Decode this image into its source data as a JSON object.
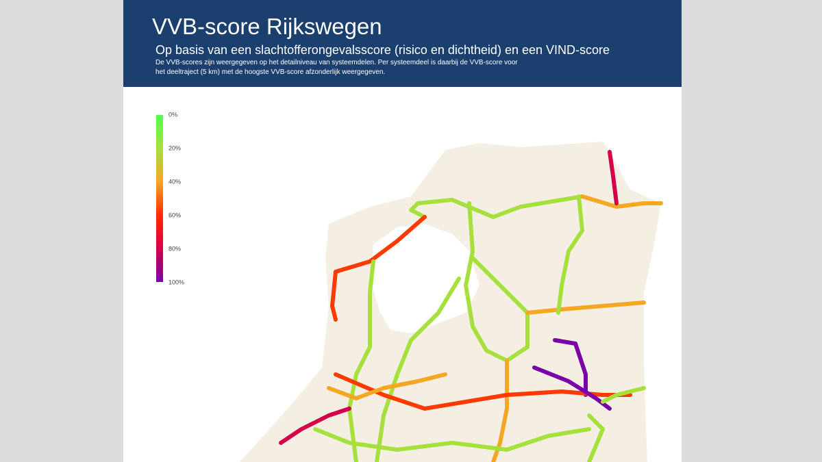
{
  "header": {
    "title": "VVB-score Rijkswegen",
    "subtitle": "Op basis van een slachtofferongevalsscore (risico en dichtheid) en een VIND-score",
    "description": [
      "De VVB-scores zijn weergegeven op het detailniveau van systeemdelen. Per systeemdeel is daarbij de VVB-score voor",
      "het deeltraject (5 km) met de hoogste VVB-score afzonderlijk weergegeven."
    ]
  },
  "colorbar": {
    "labels": [
      "0%",
      "20%",
      "40%",
      "60%",
      "80%",
      "100%"
    ]
  }
}
